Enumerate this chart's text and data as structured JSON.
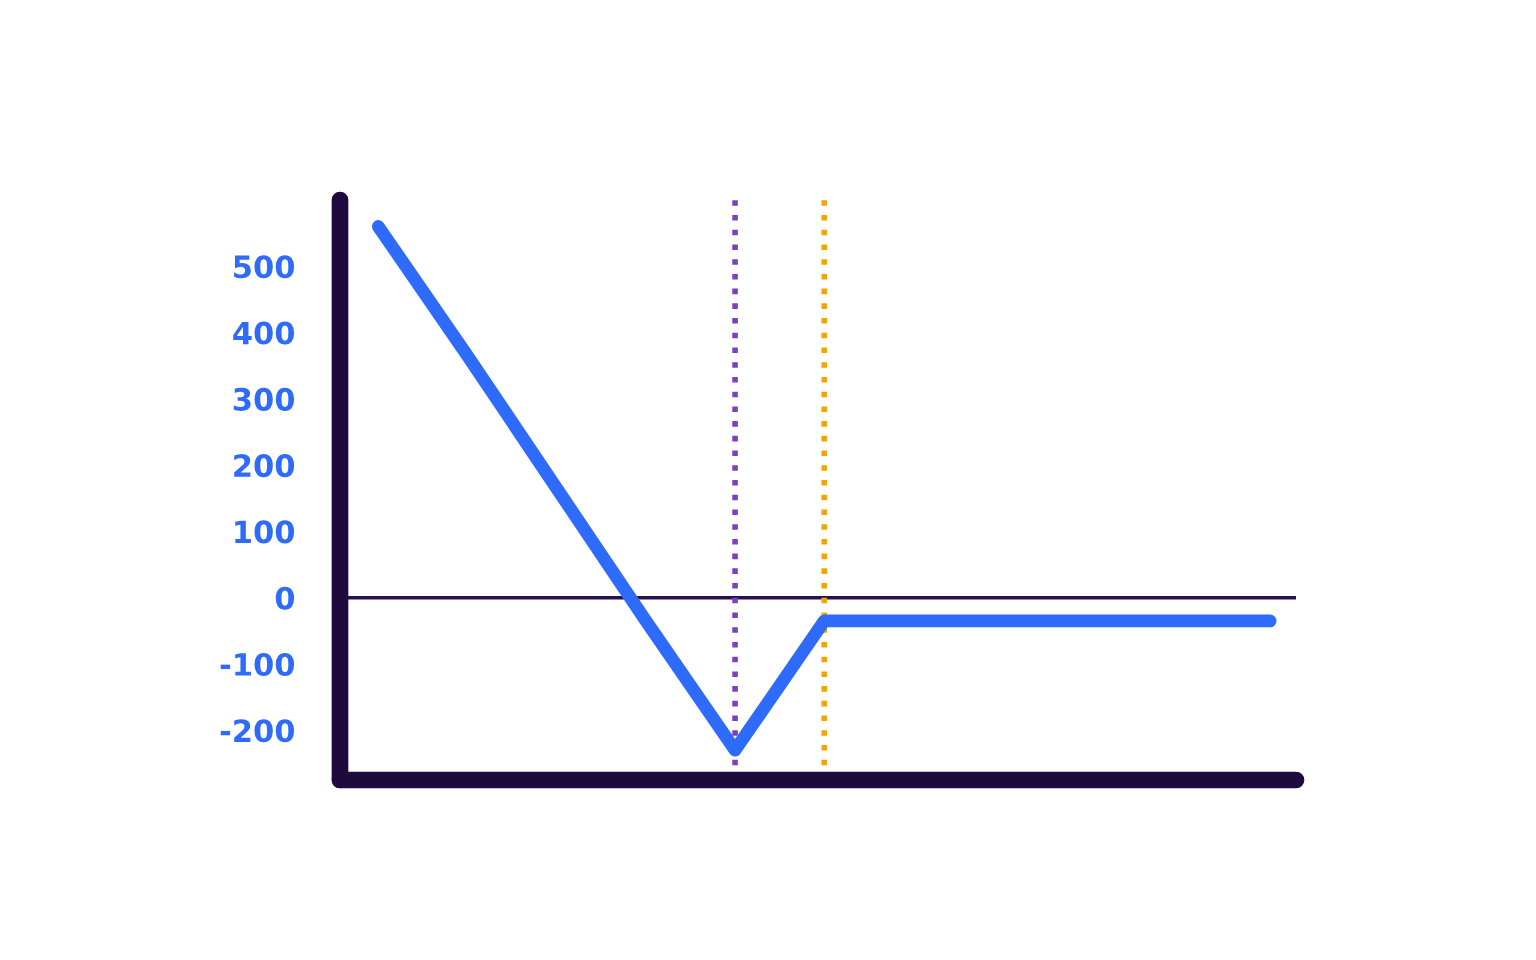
{
  "chart_data": {
    "type": "line",
    "categories": [
      null,
      null,
      null,
      null,
      null,
      null,
      null,
      null,
      null,
      null,
      null
    ],
    "values": [
      560,
      365,
      165,
      -35,
      -230,
      -35,
      -35,
      -35,
      -35,
      -35,
      -35
    ],
    "color": "#2f6bfa",
    "ylim": [
      -275,
      600
    ],
    "yticks": [
      -200,
      -100,
      0,
      100,
      200,
      300,
      400,
      500
    ],
    "tick_labels": "y",
    "marker": "none",
    "line_style": "solid",
    "ref_lines": [
      {
        "axis": "y",
        "value": 0,
        "color": "#2a1050",
        "line_style": "solid"
      }
    ]
  }
}
